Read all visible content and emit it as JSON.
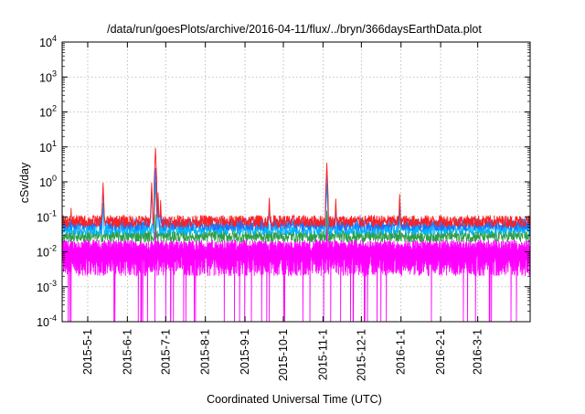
{
  "chart_data": {
    "type": "line",
    "title": "/data/run/goesPlots/archive/2016-04-11/flux/../bryn/366daysEarthData.plot",
    "xlabel": "Coordinated Universal Time (UTC)",
    "ylabel": "cSv/day",
    "yscale": "log",
    "ylim": [
      0.0001,
      10000
    ],
    "xlim": [
      "2015-04-11",
      "2016-04-11"
    ],
    "grid": true,
    "y_ticks": [
      {
        "value": 0.0001,
        "base": "10",
        "exp": "-4"
      },
      {
        "value": 0.001,
        "base": "10",
        "exp": "-3"
      },
      {
        "value": 0.01,
        "base": "10",
        "exp": "-2"
      },
      {
        "value": 0.1,
        "base": "10",
        "exp": "-1"
      },
      {
        "value": 1,
        "base": "10",
        "exp": "0"
      },
      {
        "value": 10,
        "base": "10",
        "exp": "1"
      },
      {
        "value": 100,
        "base": "10",
        "exp": "2"
      },
      {
        "value": 1000,
        "base": "10",
        "exp": "3"
      },
      {
        "value": 10000,
        "base": "10",
        "exp": "4"
      }
    ],
    "x_ticks": [
      {
        "date": "2015-05-01",
        "label": "2015-5-1"
      },
      {
        "date": "2015-06-01",
        "label": "2015-6-1"
      },
      {
        "date": "2015-07-01",
        "label": "2015-7-1"
      },
      {
        "date": "2015-08-01",
        "label": "2015-8-1"
      },
      {
        "date": "2015-09-01",
        "label": "2015-9-1"
      },
      {
        "date": "2015-10-01",
        "label": "2015-10-1"
      },
      {
        "date": "2015-11-01",
        "label": "2015-11-1"
      },
      {
        "date": "2015-12-01",
        "label": "2015-12-1"
      },
      {
        "date": "2016-01-01",
        "label": "2016-1-1"
      },
      {
        "date": "2016-02-01",
        "label": "2016-2-1"
      },
      {
        "date": "2016-03-01",
        "label": "2016-3-1"
      }
    ],
    "series": [
      {
        "color": "#ff2020",
        "baseline": 0.075,
        "spikes": [
          [
            "2015-05-13",
            0.95
          ],
          [
            "2015-06-20",
            0.95
          ],
          [
            "2015-06-23",
            9.5
          ],
          [
            "2015-06-25",
            0.5
          ],
          [
            "2015-06-27",
            0.3
          ],
          [
            "2015-09-20",
            0.35
          ],
          [
            "2015-11-04",
            3.5
          ],
          [
            "2015-11-11",
            0.33
          ],
          [
            "2015-12-31",
            0.45
          ],
          [
            "2015-04-18",
            0.18
          ]
        ]
      },
      {
        "color": "#1e6fff",
        "baseline": 0.06,
        "spikes": [
          [
            "2015-05-13",
            0.7
          ],
          [
            "2015-06-20",
            0.6
          ],
          [
            "2015-06-23",
            2.5
          ],
          [
            "2015-06-25",
            0.3
          ],
          [
            "2015-06-27",
            0.2
          ],
          [
            "2015-09-20",
            0.25
          ],
          [
            "2015-11-04",
            2.2
          ],
          [
            "2015-11-11",
            0.22
          ],
          [
            "2015-12-31",
            0.3
          ]
        ]
      },
      {
        "color": "#00b4ff",
        "baseline": 0.045,
        "spikes": [
          [
            "2015-05-13",
            0.25
          ],
          [
            "2015-06-23",
            1.0
          ],
          [
            "2015-06-25",
            0.25
          ],
          [
            "2015-11-04",
            0.9
          ],
          [
            "2015-12-31",
            0.15
          ]
        ]
      },
      {
        "color": "#2e9e4a",
        "baseline": 0.028,
        "spikes": [
          [
            "2015-06-23",
            0.12
          ],
          [
            "2015-11-04",
            0.15
          ]
        ]
      },
      {
        "color": "#ff00ff",
        "baseline": 0.015,
        "low": 0.004,
        "spikes": [
          [
            "2015-06-23",
            0.06
          ],
          [
            "2015-11-04",
            0.07
          ]
        ]
      }
    ]
  }
}
